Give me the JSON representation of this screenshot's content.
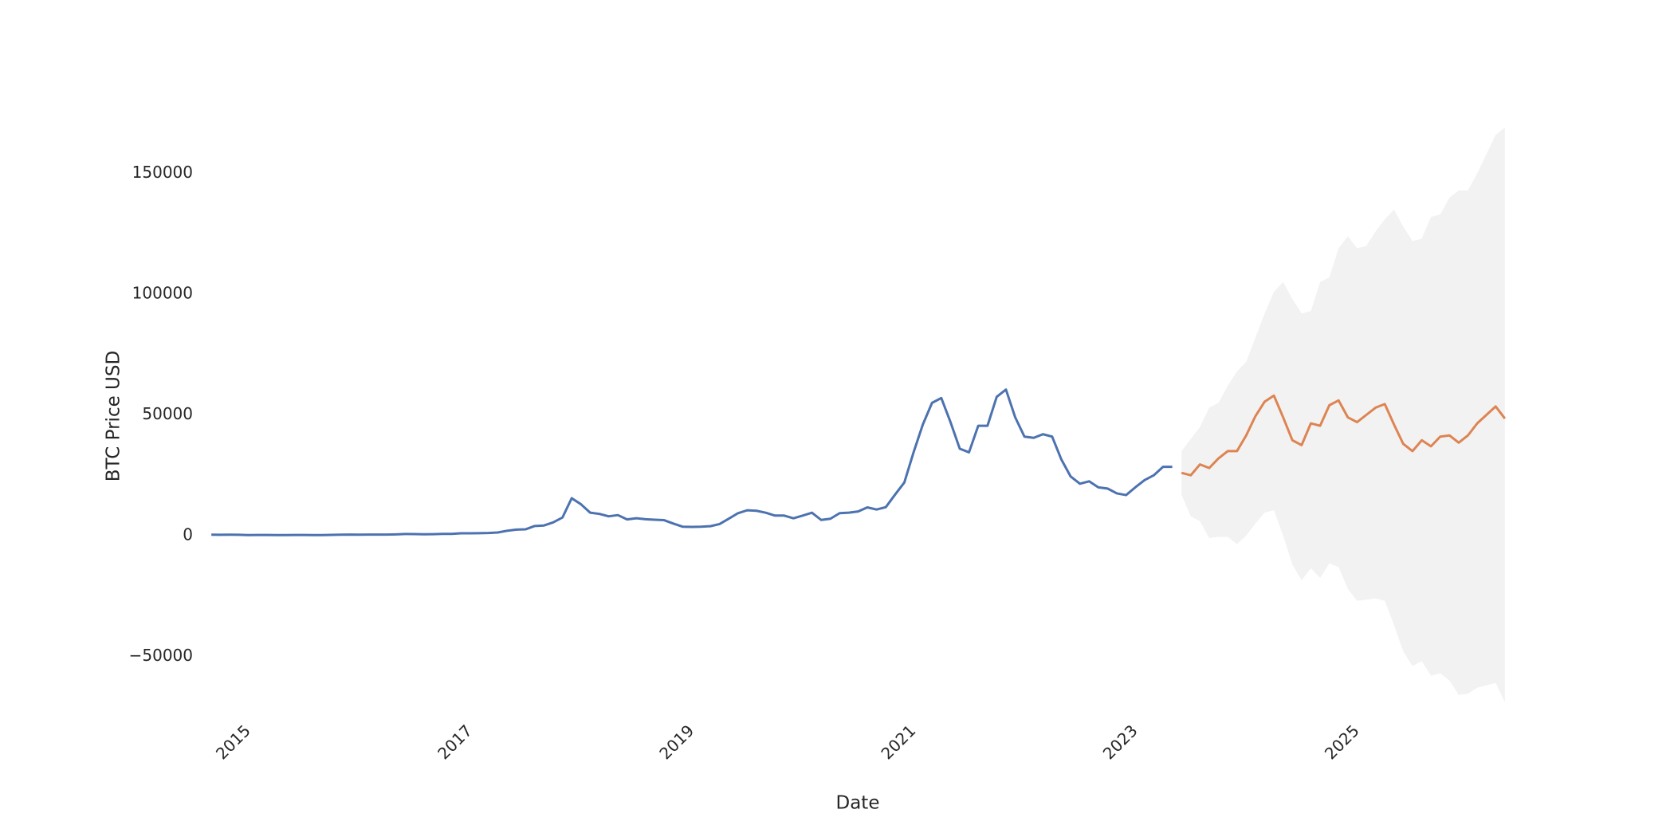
{
  "chart_data": {
    "type": "line",
    "xlabel": "Date",
    "ylabel": "BTC Price USD",
    "grid": false,
    "xlim": [
      "2014-02",
      "2026-12"
    ],
    "xticks": [
      2015,
      2017,
      2019,
      2021,
      2023,
      2025
    ],
    "ylim": [
      -72000,
      172000
    ],
    "yticks": [
      {
        "value": -50000,
        "label": "−50000"
      },
      0,
      50000,
      100000,
      150000
    ],
    "series": [
      {
        "color": "#4c72b0",
        "x": [
          "2014-09",
          "2014-10",
          "2014-11",
          "2014-12",
          "2015-01",
          "2015-02",
          "2015-03",
          "2015-04",
          "2015-05",
          "2015-06",
          "2015-07",
          "2015-08",
          "2015-09",
          "2015-10",
          "2015-11",
          "2015-12",
          "2016-01",
          "2016-02",
          "2016-03",
          "2016-04",
          "2016-05",
          "2016-06",
          "2016-07",
          "2016-08",
          "2016-09",
          "2016-10",
          "2016-11",
          "2016-12",
          "2017-01",
          "2017-02",
          "2017-03",
          "2017-04",
          "2017-05",
          "2017-06",
          "2017-07",
          "2017-08",
          "2017-09",
          "2017-10",
          "2017-11",
          "2017-12",
          "2018-01",
          "2018-02",
          "2018-03",
          "2018-04",
          "2018-05",
          "2018-06",
          "2018-07",
          "2018-08",
          "2018-09",
          "2018-10",
          "2018-11",
          "2018-12",
          "2019-01",
          "2019-02",
          "2019-03",
          "2019-04",
          "2019-05",
          "2019-06",
          "2019-07",
          "2019-08",
          "2019-09",
          "2019-10",
          "2019-11",
          "2019-12",
          "2020-01",
          "2020-02",
          "2020-03",
          "2020-04",
          "2020-05",
          "2020-06",
          "2020-07",
          "2020-08",
          "2020-09",
          "2020-10",
          "2020-11",
          "2020-12",
          "2021-01",
          "2021-02",
          "2021-03",
          "2021-04",
          "2021-05",
          "2021-06",
          "2021-07",
          "2021-08",
          "2021-09",
          "2021-10",
          "2021-11",
          "2021-12",
          "2022-01",
          "2022-02",
          "2022-03",
          "2022-04",
          "2022-05",
          "2022-06",
          "2022-07",
          "2022-08",
          "2022-09",
          "2022-10",
          "2022-11",
          "2022-12",
          "2023-01",
          "2023-02",
          "2023-03",
          "2023-04",
          "2023-05"
        ],
        "values": [
          400,
          350,
          370,
          330,
          220,
          250,
          250,
          230,
          235,
          260,
          285,
          230,
          235,
          310,
          380,
          430,
          370,
          435,
          415,
          450,
          530,
          670,
          625,
          575,
          610,
          700,
          740,
          960,
          970,
          1000,
          1100,
          1300,
          2000,
          2500,
          2600,
          4000,
          4200,
          5500,
          7500,
          15500,
          13000,
          9500,
          9000,
          8000,
          8500,
          6700,
          7200,
          6800,
          6600,
          6400,
          5000,
          3700,
          3600,
          3700,
          3900,
          4800,
          7000,
          9300,
          10500,
          10300,
          9500,
          8300,
          8300,
          7200,
          8300,
          9500,
          6500,
          7000,
          9300,
          9500,
          10000,
          11700,
          10800,
          11800,
          17000,
          22000,
          34500,
          46000,
          55000,
          57000,
          47000,
          36000,
          34500,
          45500,
          45500,
          57500,
          60500,
          49000,
          41000,
          40500,
          42000,
          41000,
          31500,
          24500,
          21500,
          22500,
          20000,
          19500,
          17500,
          16800,
          20000,
          23000,
          25000,
          28500,
          28500
        ]
      },
      {
        "color": "#dd8452",
        "band_color": "#f2f2f2",
        "x": [
          "2023-06",
          "2023-07",
          "2023-08",
          "2023-09",
          "2023-10",
          "2023-11",
          "2023-12",
          "2024-01",
          "2024-02",
          "2024-03",
          "2024-04",
          "2024-05",
          "2024-06",
          "2024-07",
          "2024-08",
          "2024-09",
          "2024-10",
          "2024-11",
          "2024-12",
          "2025-01",
          "2025-02",
          "2025-03",
          "2025-04",
          "2025-05",
          "2025-06",
          "2025-07",
          "2025-08",
          "2025-09",
          "2025-10",
          "2025-11",
          "2025-12",
          "2026-01",
          "2026-02",
          "2026-03",
          "2026-04",
          "2026-05"
        ],
        "values": [
          26000,
          25000,
          29500,
          28000,
          32000,
          35000,
          35000,
          41500,
          49500,
          55500,
          58000,
          49000,
          39500,
          37500,
          46500,
          45500,
          54000,
          56000,
          49000,
          47000,
          50000,
          53000,
          54500,
          46000,
          38000,
          35000,
          39500,
          37000,
          41000,
          41500,
          38500,
          41500,
          46500,
          50000,
          53500,
          48500
        ],
        "upper": [
          35000,
          40000,
          45000,
          53000,
          55000,
          62000,
          68000,
          72000,
          82000,
          92000,
          101000,
          105000,
          98000,
          92000,
          93000,
          105000,
          107000,
          119000,
          124000,
          119000,
          120000,
          126000,
          131000,
          135000,
          128000,
          122000,
          123000,
          132000,
          133000,
          140000,
          143000,
          143000,
          150000,
          158000,
          166000,
          169000
        ],
        "lower": [
          17000,
          8000,
          6000,
          -1000,
          -500,
          -500,
          -3500,
          0,
          5000,
          9500,
          10500,
          0,
          -12000,
          -18500,
          -13500,
          -17500,
          -11500,
          -13000,
          -22000,
          -27000,
          -26500,
          -26000,
          -27000,
          -37000,
          -48000,
          -54000,
          -52000,
          -58000,
          -57000,
          -60000,
          -66000,
          -65500,
          -63000,
          -62000,
          -61000,
          -69000
        ]
      }
    ]
  }
}
